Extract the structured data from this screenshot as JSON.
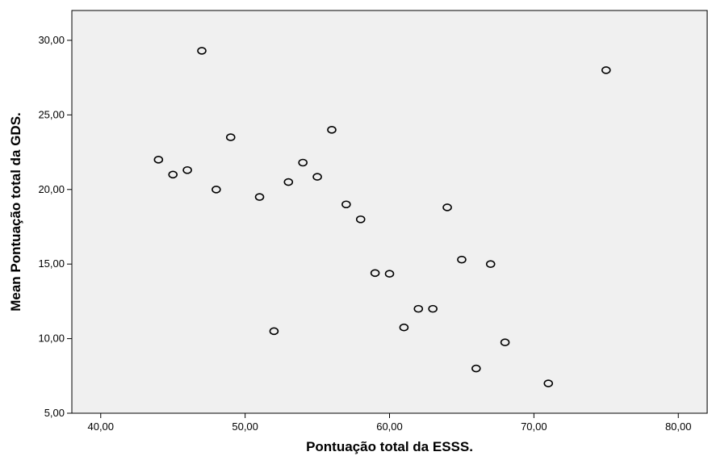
{
  "chart_data": {
    "type": "scatter",
    "xlabel": "Pontuação total da ESSS.",
    "ylabel": "Mean Pontuação total da GDS.",
    "xlim": [
      38,
      82
    ],
    "ylim": [
      5,
      32
    ],
    "xticks": [
      40,
      50,
      60,
      70,
      80
    ],
    "yticks": [
      5,
      10,
      15,
      20,
      25,
      30
    ],
    "xtick_labels": [
      "40,00",
      "50,00",
      "60,00",
      "70,00",
      "80,00"
    ],
    "ytick_labels": [
      "5,00",
      "10,00",
      "15,00",
      "20,00",
      "25,00",
      "30,00"
    ],
    "grid": false,
    "marker": "open-circle",
    "plot_background": "#f0f0f0",
    "marker_color": "#000000",
    "points": [
      {
        "x": 44,
        "y": 22.0
      },
      {
        "x": 45,
        "y": 21.0
      },
      {
        "x": 46,
        "y": 21.3
      },
      {
        "x": 47,
        "y": 29.3
      },
      {
        "x": 48,
        "y": 20.0
      },
      {
        "x": 49,
        "y": 23.5
      },
      {
        "x": 51,
        "y": 19.5
      },
      {
        "x": 52,
        "y": 10.5
      },
      {
        "x": 53,
        "y": 20.5
      },
      {
        "x": 54,
        "y": 21.8
      },
      {
        "x": 55,
        "y": 20.85
      },
      {
        "x": 56,
        "y": 24.0
      },
      {
        "x": 57,
        "y": 19.0
      },
      {
        "x": 58,
        "y": 18.0
      },
      {
        "x": 59,
        "y": 14.4
      },
      {
        "x": 60,
        "y": 14.35
      },
      {
        "x": 61,
        "y": 10.75
      },
      {
        "x": 62,
        "y": 12.0
      },
      {
        "x": 63,
        "y": 12.0
      },
      {
        "x": 64,
        "y": 18.8
      },
      {
        "x": 65,
        "y": 15.3
      },
      {
        "x": 66,
        "y": 8.0
      },
      {
        "x": 67,
        "y": 15.0
      },
      {
        "x": 68,
        "y": 9.75
      },
      {
        "x": 71,
        "y": 7.0
      },
      {
        "x": 75,
        "y": 28.0
      }
    ]
  }
}
